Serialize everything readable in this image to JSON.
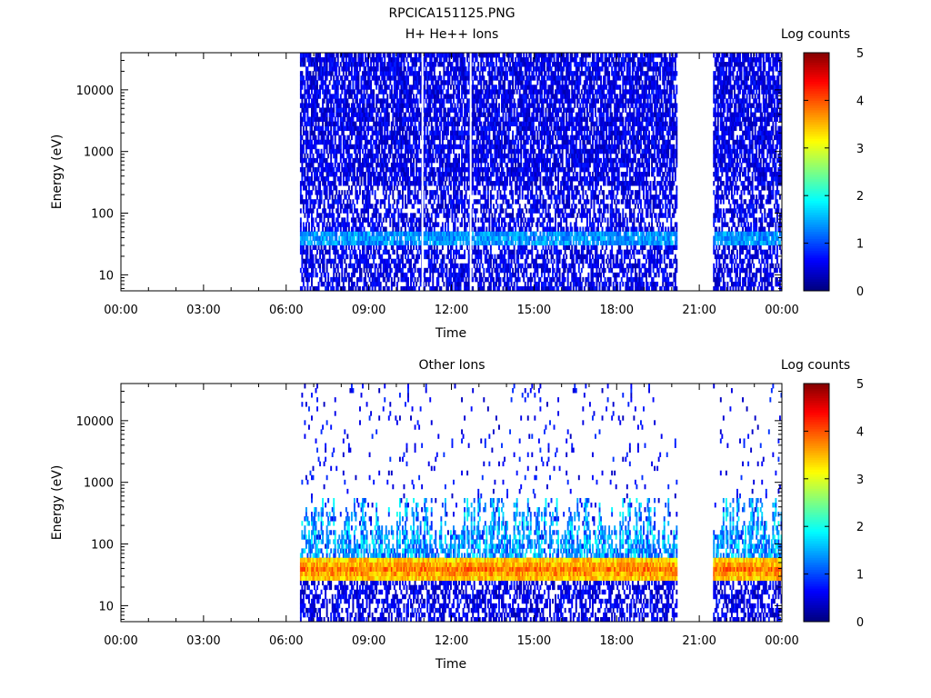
{
  "figure_title": "RPCICA151125.PNG",
  "chart_data": [
    {
      "type": "heatmap",
      "title": "H+ He++ Ions",
      "xlabel": "Time",
      "ylabel": "Energy (eV)",
      "x_tick_labels": [
        "00:00",
        "03:00",
        "06:00",
        "09:00",
        "12:00",
        "15:00",
        "18:00",
        "21:00",
        "00:00"
      ],
      "x_tick_hours": [
        0,
        3,
        6,
        9,
        12,
        15,
        18,
        21,
        24
      ],
      "xlim_hours": [
        0,
        24
      ],
      "y_scale": "log",
      "ylim": [
        5.5,
        40000
      ],
      "y_tick_values": [
        10,
        100,
        1000,
        10000
      ],
      "y_tick_labels": [
        "10",
        "100",
        "1000",
        "10000"
      ],
      "data_intervals_hours": [
        [
          6.5,
          20.2
        ],
        [
          21.5,
          24.0
        ]
      ],
      "gap_lines_hours": [
        10.95,
        12.7
      ],
      "features": [
        {
          "energy_range_eV": [
            30,
            55
          ],
          "log_counts": 1.3,
          "description": "band"
        }
      ],
      "background_log_counts": [
        0.2,
        0.8
      ],
      "colorbar": {
        "label": "Log counts",
        "range": [
          0,
          5
        ],
        "tick_labels": [
          "0",
          "1",
          "2",
          "3",
          "4",
          "5"
        ]
      }
    },
    {
      "type": "heatmap",
      "title": "Other Ions",
      "xlabel": "Time",
      "ylabel": "Energy (eV)",
      "x_tick_labels": [
        "00:00",
        "03:00",
        "06:00",
        "09:00",
        "12:00",
        "15:00",
        "18:00",
        "21:00",
        "00:00"
      ],
      "x_tick_hours": [
        0,
        3,
        6,
        9,
        12,
        15,
        18,
        21,
        24
      ],
      "xlim_hours": [
        0,
        24
      ],
      "y_scale": "log",
      "ylim": [
        5.5,
        40000
      ],
      "y_tick_values": [
        10,
        100,
        1000,
        10000
      ],
      "y_tick_labels": [
        "10",
        "100",
        "1000",
        "10000"
      ],
      "data_intervals_hours": [
        [
          6.5,
          20.2
        ],
        [
          21.5,
          24.0
        ]
      ],
      "features": [
        {
          "energy_range_eV": [
            25,
            60
          ],
          "log_counts": 3.8,
          "description": "intense band"
        },
        {
          "energy_range_eV": [
            60,
            500
          ],
          "log_counts": 1.5,
          "description": "spiky enhancement"
        }
      ],
      "colorbar": {
        "label": "Log counts",
        "range": [
          0,
          5
        ],
        "tick_labels": [
          "0",
          "1",
          "2",
          "3",
          "4",
          "5"
        ]
      }
    }
  ]
}
